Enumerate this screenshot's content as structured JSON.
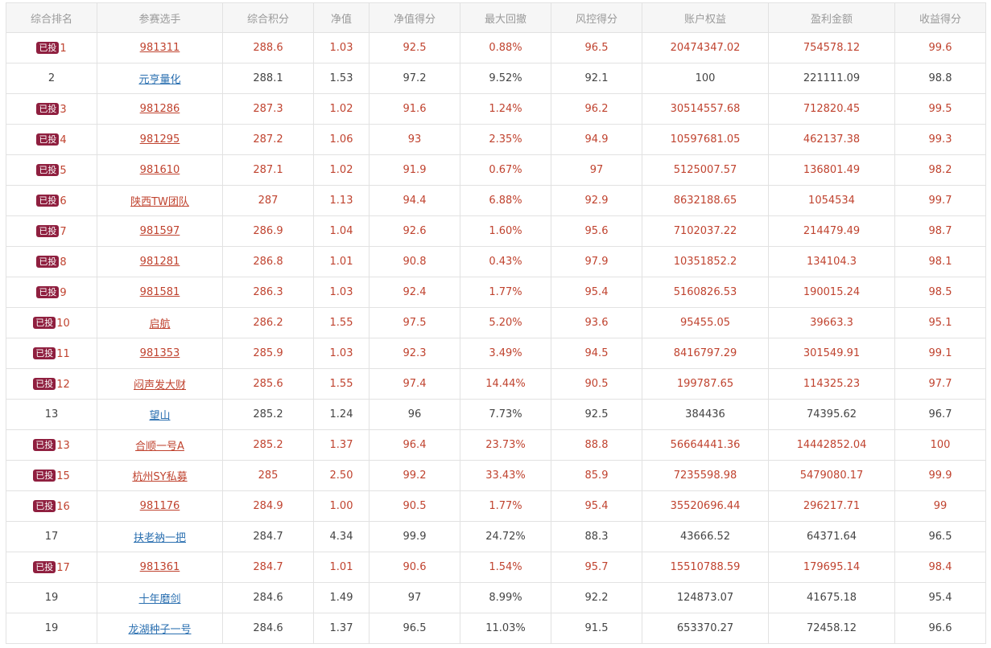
{
  "table": {
    "columns": [
      "综合排名",
      "参赛选手",
      "综合积分",
      "净值",
      "净值得分",
      "最大回撤",
      "风控得分",
      "账户权益",
      "盈利金额",
      "收益得分"
    ],
    "badge_label": "已投",
    "rows": [
      {
        "invested": true,
        "rank": "1",
        "player": "981311",
        "score": "288.6",
        "nav": "1.03",
        "nav_score": "92.5",
        "drawdown": "0.88%",
        "risk_score": "96.5",
        "equity": "20474347.02",
        "profit": "754578.12",
        "return_score": "99.6"
      },
      {
        "invested": false,
        "rank": "2",
        "player": "元亨量化",
        "score": "288.1",
        "nav": "1.53",
        "nav_score": "97.2",
        "drawdown": "9.52%",
        "risk_score": "92.1",
        "equity": "100",
        "profit": "221111.09",
        "return_score": "98.8"
      },
      {
        "invested": true,
        "rank": "3",
        "player": "981286",
        "score": "287.3",
        "nav": "1.02",
        "nav_score": "91.6",
        "drawdown": "1.24%",
        "risk_score": "96.2",
        "equity": "30514557.68",
        "profit": "712820.45",
        "return_score": "99.5"
      },
      {
        "invested": true,
        "rank": "4",
        "player": "981295",
        "score": "287.2",
        "nav": "1.06",
        "nav_score": "93",
        "drawdown": "2.35%",
        "risk_score": "94.9",
        "equity": "10597681.05",
        "profit": "462137.38",
        "return_score": "99.3"
      },
      {
        "invested": true,
        "rank": "5",
        "player": "981610",
        "score": "287.1",
        "nav": "1.02",
        "nav_score": "91.9",
        "drawdown": "0.67%",
        "risk_score": "97",
        "equity": "5125007.57",
        "profit": "136801.49",
        "return_score": "98.2"
      },
      {
        "invested": true,
        "rank": "6",
        "player": "陕西TW团队",
        "score": "287",
        "nav": "1.13",
        "nav_score": "94.4",
        "drawdown": "6.88%",
        "risk_score": "92.9",
        "equity": "8632188.65",
        "profit": "1054534",
        "return_score": "99.7"
      },
      {
        "invested": true,
        "rank": "7",
        "player": "981597",
        "score": "286.9",
        "nav": "1.04",
        "nav_score": "92.6",
        "drawdown": "1.60%",
        "risk_score": "95.6",
        "equity": "7102037.22",
        "profit": "214479.49",
        "return_score": "98.7"
      },
      {
        "invested": true,
        "rank": "8",
        "player": "981281",
        "score": "286.8",
        "nav": "1.01",
        "nav_score": "90.8",
        "drawdown": "0.43%",
        "risk_score": "97.9",
        "equity": "10351852.2",
        "profit": "134104.3",
        "return_score": "98.1"
      },
      {
        "invested": true,
        "rank": "9",
        "player": "981581",
        "score": "286.3",
        "nav": "1.03",
        "nav_score": "92.4",
        "drawdown": "1.77%",
        "risk_score": "95.4",
        "equity": "5160826.53",
        "profit": "190015.24",
        "return_score": "98.5"
      },
      {
        "invested": true,
        "rank": "10",
        "player": "启航",
        "score": "286.2",
        "nav": "1.55",
        "nav_score": "97.5",
        "drawdown": "5.20%",
        "risk_score": "93.6",
        "equity": "95455.05",
        "profit": "39663.3",
        "return_score": "95.1"
      },
      {
        "invested": true,
        "rank": "11",
        "player": "981353",
        "score": "285.9",
        "nav": "1.03",
        "nav_score": "92.3",
        "drawdown": "3.49%",
        "risk_score": "94.5",
        "equity": "8416797.29",
        "profit": "301549.91",
        "return_score": "99.1"
      },
      {
        "invested": true,
        "rank": "12",
        "player": "闷声发大财",
        "score": "285.6",
        "nav": "1.55",
        "nav_score": "97.4",
        "drawdown": "14.44%",
        "risk_score": "90.5",
        "equity": "199787.65",
        "profit": "114325.23",
        "return_score": "97.7"
      },
      {
        "invested": false,
        "rank": "13",
        "player": "望山",
        "score": "285.2",
        "nav": "1.24",
        "nav_score": "96",
        "drawdown": "7.73%",
        "risk_score": "92.5",
        "equity": "384436",
        "profit": "74395.62",
        "return_score": "96.7"
      },
      {
        "invested": true,
        "rank": "13",
        "player": "合顺一号A",
        "score": "285.2",
        "nav": "1.37",
        "nav_score": "96.4",
        "drawdown": "23.73%",
        "risk_score": "88.8",
        "equity": "56664441.36",
        "profit": "14442852.04",
        "return_score": "100"
      },
      {
        "invested": true,
        "rank": "15",
        "player": "杭州SY私募",
        "score": "285",
        "nav": "2.50",
        "nav_score": "99.2",
        "drawdown": "33.43%",
        "risk_score": "85.9",
        "equity": "7235598.98",
        "profit": "5479080.17",
        "return_score": "99.9"
      },
      {
        "invested": true,
        "rank": "16",
        "player": "981176",
        "score": "284.9",
        "nav": "1.00",
        "nav_score": "90.5",
        "drawdown": "1.77%",
        "risk_score": "95.4",
        "equity": "35520696.44",
        "profit": "296217.71",
        "return_score": "99"
      },
      {
        "invested": false,
        "rank": "17",
        "player": "扶老衲一把",
        "score": "284.7",
        "nav": "4.34",
        "nav_score": "99.9",
        "drawdown": "24.72%",
        "risk_score": "88.3",
        "equity": "43666.52",
        "profit": "64371.64",
        "return_score": "96.5"
      },
      {
        "invested": true,
        "rank": "17",
        "player": "981361",
        "score": "284.7",
        "nav": "1.01",
        "nav_score": "90.6",
        "drawdown": "1.54%",
        "risk_score": "95.7",
        "equity": "15510788.59",
        "profit": "179695.14",
        "return_score": "98.4"
      },
      {
        "invested": false,
        "rank": "19",
        "player": "十年磨剑",
        "score": "284.6",
        "nav": "1.49",
        "nav_score": "97",
        "drawdown": "8.99%",
        "risk_score": "92.2",
        "equity": "124873.07",
        "profit": "41675.18",
        "return_score": "95.4"
      },
      {
        "invested": false,
        "rank": "19",
        "player": "龙湖种子一号",
        "score": "284.6",
        "nav": "1.37",
        "nav_score": "96.5",
        "drawdown": "11.03%",
        "risk_score": "91.5",
        "equity": "653370.27",
        "profit": "72458.12",
        "return_score": "96.6"
      }
    ]
  },
  "colors": {
    "invested_text": "#c0432f",
    "plain_text": "#444444",
    "plain_link": "#2a6fb0",
    "badge_bg": "#8f1f3f",
    "header_bg": "#f6f6f6",
    "header_text": "#9a9a9a",
    "border": "#e2e2e2"
  }
}
